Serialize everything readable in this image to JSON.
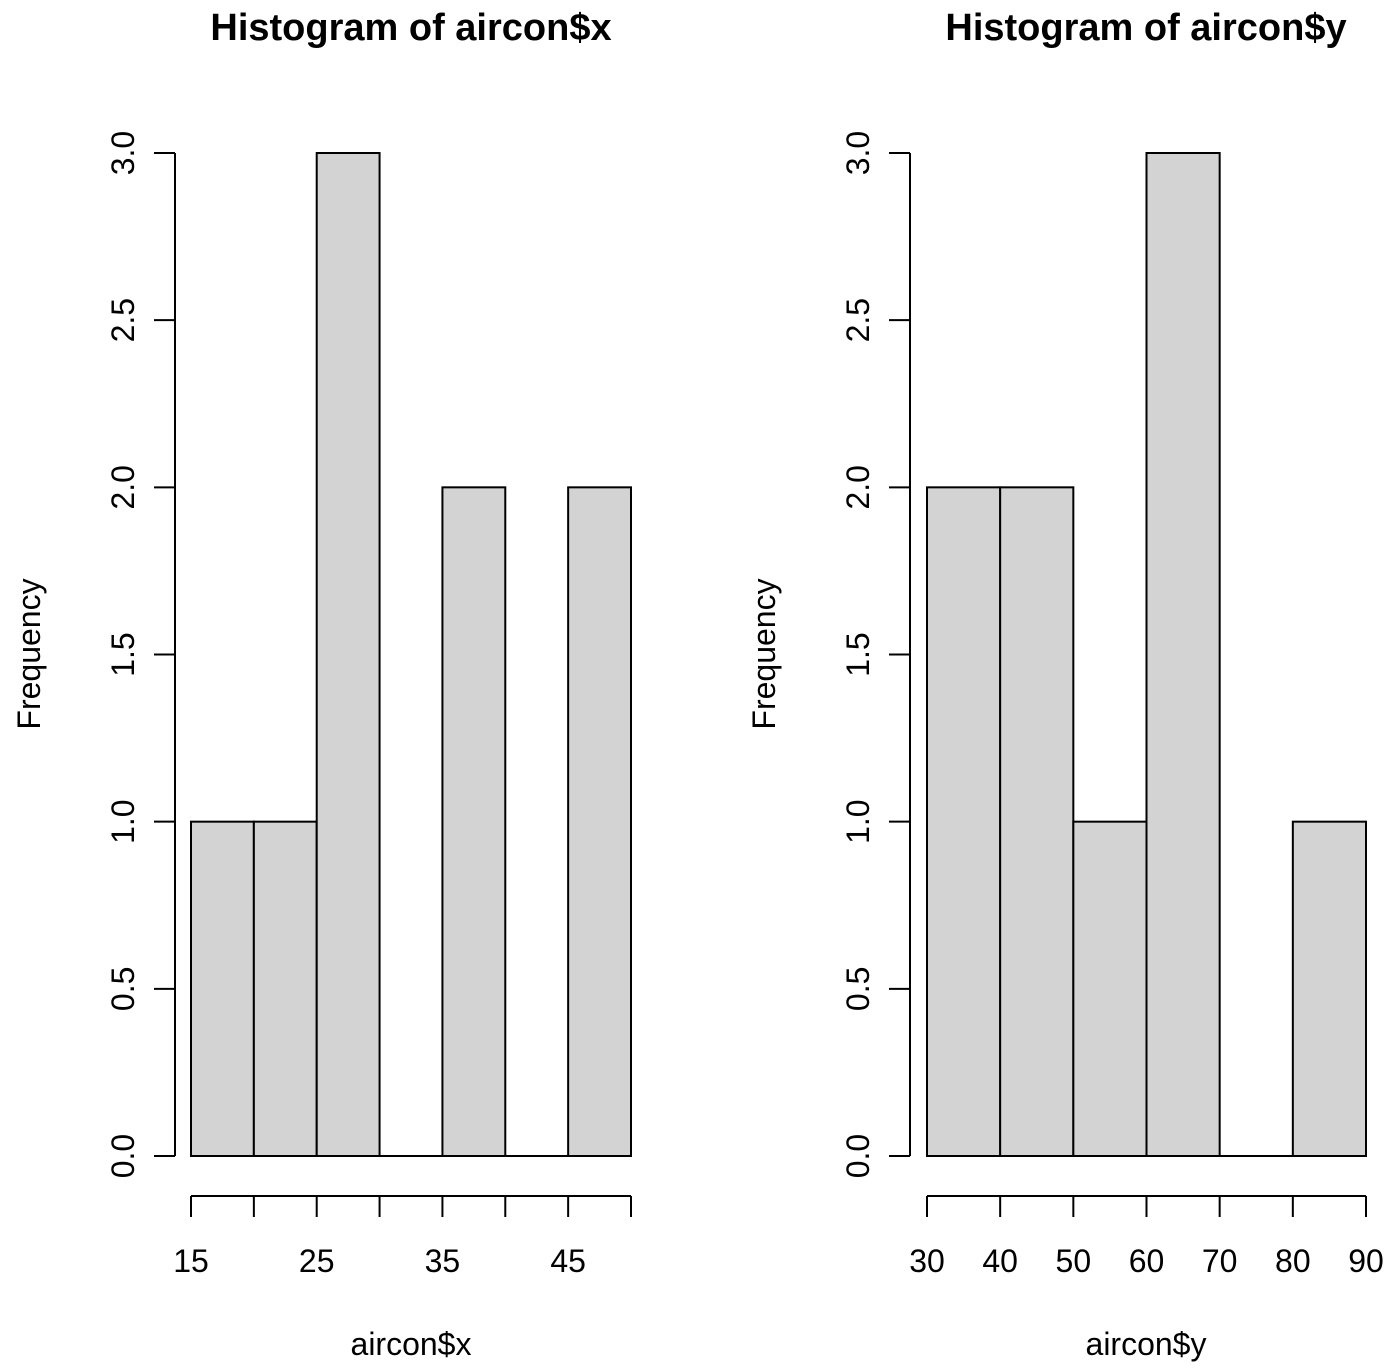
{
  "chart_data": [
    {
      "type": "bar",
      "title": "Histogram of aircon$x",
      "xlabel": "aircon$x",
      "ylabel": "Frequency",
      "bins": [
        [
          15,
          20
        ],
        [
          20,
          25
        ],
        [
          25,
          30
        ],
        [
          30,
          35
        ],
        [
          35,
          40
        ],
        [
          40,
          45
        ],
        [
          45,
          50
        ]
      ],
      "values": [
        1,
        1,
        3,
        0,
        2,
        0,
        2
      ],
      "xlim": [
        15,
        50
      ],
      "ylim": [
        0,
        3
      ],
      "x_ticks": [
        15,
        20,
        25,
        30,
        35,
        40,
        45,
        50
      ],
      "x_tick_labels": [
        "15",
        "",
        "25",
        "",
        "35",
        "",
        "45",
        ""
      ],
      "y_ticks": [
        0,
        0.5,
        1,
        1.5,
        2,
        2.5,
        3
      ],
      "y_tick_labels": [
        "0.0",
        "0.5",
        "1.0",
        "1.5",
        "2.0",
        "2.5",
        "3.0"
      ],
      "bar_color": "#d3d3d3",
      "grid": false
    },
    {
      "type": "bar",
      "title": "Histogram of aircon$y",
      "xlabel": "aircon$y",
      "ylabel": "Frequency",
      "bins": [
        [
          30,
          40
        ],
        [
          40,
          50
        ],
        [
          50,
          60
        ],
        [
          60,
          70
        ],
        [
          70,
          80
        ],
        [
          80,
          90
        ]
      ],
      "values": [
        2,
        2,
        1,
        3,
        0,
        1
      ],
      "xlim": [
        30,
        90
      ],
      "ylim": [
        0,
        3
      ],
      "x_ticks": [
        30,
        40,
        50,
        60,
        70,
        80,
        90
      ],
      "x_tick_labels": [
        "30",
        "40",
        "50",
        "60",
        "70",
        "80",
        "90"
      ],
      "y_ticks": [
        0,
        0.5,
        1,
        1.5,
        2,
        2.5,
        3
      ],
      "y_tick_labels": [
        "0.0",
        "0.5",
        "1.0",
        "1.5",
        "2.0",
        "2.5",
        "3.0"
      ],
      "bar_color": "#d3d3d3",
      "grid": false
    }
  ]
}
